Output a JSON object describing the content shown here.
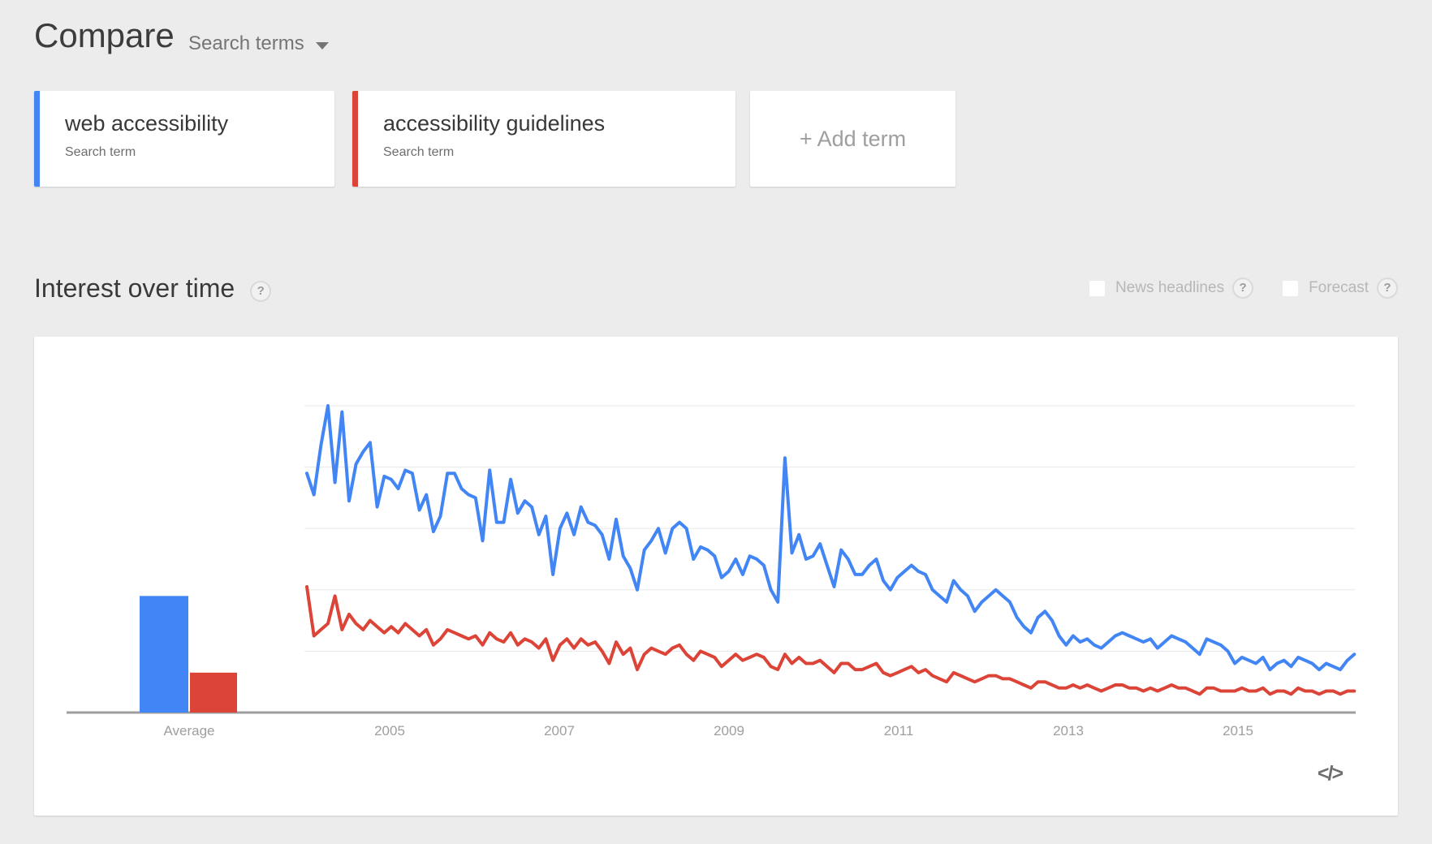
{
  "header": {
    "title": "Compare",
    "subtitle": "Search terms"
  },
  "terms": [
    {
      "label": "web accessibility",
      "sublabel": "Search term",
      "color": "#4285f4"
    },
    {
      "label": "accessibility guidelines",
      "sublabel": "Search term",
      "color": "#db4437"
    }
  ],
  "add_term_label": "+ Add term",
  "section": {
    "title": "Interest over time",
    "help_glyph": "?",
    "news_headlines_label": "News headlines",
    "forecast_label": "Forecast",
    "news_headlines_checked": false,
    "forecast_checked": false
  },
  "embed_glyph": "</>",
  "chart_data": {
    "type": "line",
    "title": "Interest over time",
    "x_start": "2004-01",
    "x_end": "2016-06",
    "x_interval": "monthly",
    "x_tick_labels": [
      "2005",
      "2007",
      "2009",
      "2011",
      "2013",
      "2015"
    ],
    "average_label": "Average",
    "ylim": [
      0,
      100
    ],
    "gridlines": [
      20,
      40,
      60,
      80,
      100
    ],
    "grid": true,
    "legend": "none",
    "colors": {
      "axis": "#9e9e9e",
      "gridline": "#e8e8e8"
    },
    "averages": [
      {
        "name": "web accessibility",
        "value": 38,
        "color": "#4285f4"
      },
      {
        "name": "accessibility guidelines",
        "value": 13,
        "color": "#db4437"
      }
    ],
    "series": [
      {
        "name": "web accessibility",
        "color": "#4285f4",
        "values": [
          78,
          71,
          87,
          100,
          75,
          98,
          69,
          81,
          85,
          88,
          67,
          77,
          76,
          73,
          79,
          78,
          66,
          71,
          59,
          64,
          78,
          78,
          73,
          71,
          70,
          56,
          79,
          62,
          62,
          76,
          65,
          69,
          67,
          58,
          64,
          45,
          60,
          65,
          58,
          67,
          62,
          61,
          58,
          50,
          63,
          51,
          47,
          40,
          53,
          56,
          60,
          52,
          60,
          62,
          60,
          50,
          54,
          53,
          51,
          44,
          46,
          50,
          45,
          51,
          50,
          48,
          40,
          36,
          83,
          52,
          58,
          50,
          51,
          55,
          48,
          41,
          53,
          50,
          45,
          45,
          48,
          50,
          43,
          40,
          44,
          46,
          48,
          46,
          45,
          40,
          38,
          36,
          43,
          40,
          38,
          33,
          36,
          38,
          40,
          38,
          36,
          31,
          28,
          26,
          31,
          33,
          30,
          25,
          22,
          25,
          23,
          24,
          22,
          21,
          23,
          25,
          26,
          25,
          24,
          23,
          24,
          21,
          23,
          25,
          24,
          23,
          21,
          19,
          24,
          23,
          22,
          20,
          16,
          18,
          17,
          16,
          18,
          14,
          16,
          17,
          15,
          18,
          17,
          16,
          14,
          16,
          15,
          14,
          17,
          19
        ]
      },
      {
        "name": "accessibility guidelines",
        "color": "#db4437",
        "values": [
          41,
          25,
          27,
          29,
          38,
          27,
          32,
          29,
          27,
          30,
          28,
          26,
          28,
          26,
          29,
          27,
          25,
          27,
          22,
          24,
          27,
          26,
          25,
          24,
          25,
          22,
          26,
          24,
          23,
          26,
          22,
          24,
          23,
          21,
          24,
          17,
          22,
          24,
          21,
          24,
          22,
          23,
          20,
          16,
          23,
          19,
          21,
          14,
          19,
          21,
          20,
          19,
          21,
          22,
          19,
          17,
          20,
          19,
          18,
          15,
          17,
          19,
          17,
          18,
          19,
          18,
          15,
          14,
          19,
          16,
          18,
          16,
          16,
          17,
          15,
          13,
          16,
          16,
          14,
          14,
          15,
          16,
          13,
          12,
          13,
          14,
          15,
          13,
          14,
          12,
          11,
          10,
          13,
          12,
          11,
          10,
          11,
          12,
          12,
          11,
          11,
          10,
          9,
          8,
          10,
          10,
          9,
          8,
          8,
          9,
          8,
          9,
          8,
          7,
          8,
          9,
          9,
          8,
          8,
          7,
          8,
          7,
          8,
          9,
          8,
          8,
          7,
          6,
          8,
          8,
          7,
          7,
          7,
          8,
          7,
          7,
          8,
          6,
          7,
          7,
          6,
          8,
          7,
          7,
          6,
          7,
          7,
          6,
          7,
          7
        ]
      }
    ]
  }
}
